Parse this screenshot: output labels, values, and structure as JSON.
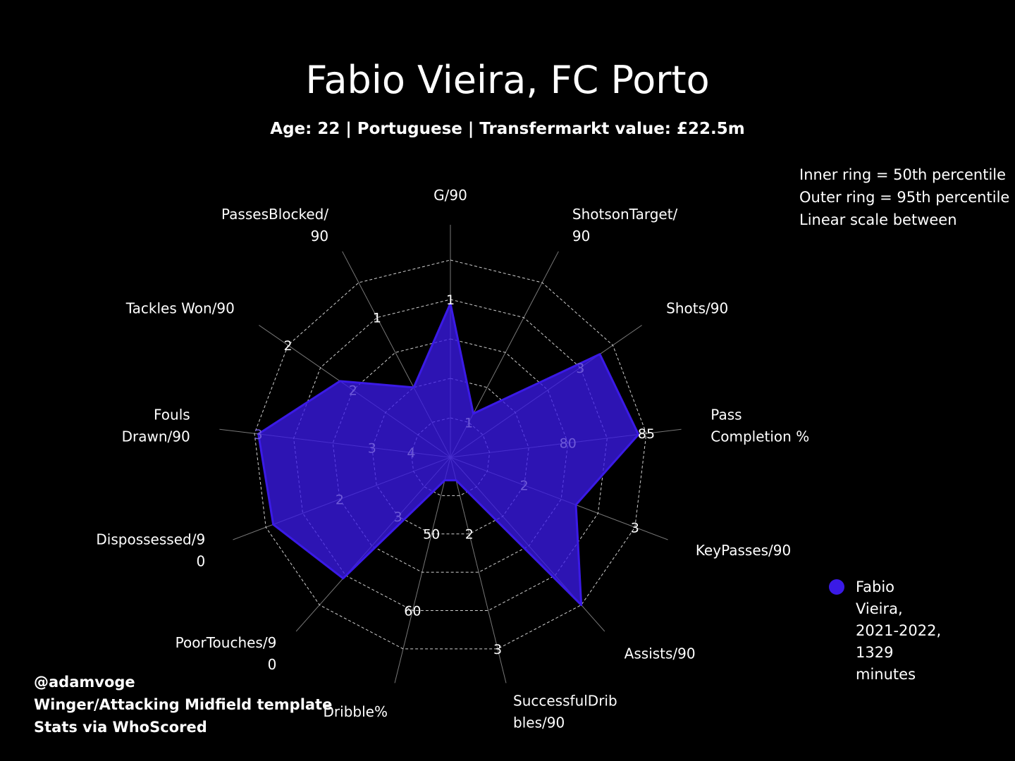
{
  "title": "Fabio Vieira, FC Porto",
  "subtitle": "Age: 22 | Portuguese | Transfermarkt value: £22.5m",
  "scale_note": [
    "Inner ring = 50th percentile",
    "Outer ring = 95th percentile",
    "Linear scale between"
  ],
  "legend": {
    "label_lines": [
      "Fabio",
      "Vieira,",
      "2021-2022,",
      "1329",
      "minutes"
    ],
    "color": "#3a1ae6"
  },
  "credits": [
    "@adamvoge",
    "Winger/Attacking Midfield template",
    "Stats via WhoScored"
  ],
  "chart_data": {
    "type": "radar",
    "series": [
      {
        "name": "Fabio Vieira, 2021-2022, 1329 minutes",
        "color": "#3a1ae6"
      }
    ],
    "axes": [
      {
        "label": [
          "G/90"
        ],
        "percentile": 78,
        "ticks": [
          {
            "value": "1",
            "level": 0.8
          }
        ]
      },
      {
        "label": [
          "ShotsonTarget/",
          "90"
        ],
        "percentile": 25,
        "ticks": [
          {
            "value": "1",
            "level": 0.2
          }
        ]
      },
      {
        "label": [
          "Shots/90"
        ],
        "percentile": 92,
        "ticks": [
          {
            "value": "3",
            "level": 0.8
          }
        ]
      },
      {
        "label": [
          "Pass",
          "Completion %"
        ],
        "percentile": 96,
        "ticks": [
          {
            "value": "80",
            "level": 0.6
          },
          {
            "value": "85",
            "level": 1.0
          }
        ]
      },
      {
        "label": [
          "KeyPasses/90"
        ],
        "percentile": 68,
        "ticks": [
          {
            "value": "2",
            "level": 0.4
          },
          {
            "value": "3",
            "level": 1.0
          }
        ]
      },
      {
        "label": [
          "Assists/90"
        ],
        "percentile": 100,
        "ticks": []
      },
      {
        "label": [
          "SuccessfulDrib",
          "bles/90"
        ],
        "percentile": 12,
        "ticks": [
          {
            "value": "2",
            "level": 0.4
          },
          {
            "value": "3",
            "level": 1.0
          }
        ]
      },
      {
        "label": [
          "Dribble%"
        ],
        "percentile": 12,
        "ticks": [
          {
            "value": "50",
            "level": 0.4
          },
          {
            "value": "60",
            "level": 0.8
          }
        ]
      },
      {
        "label": [
          "PoorTouches/9",
          "0"
        ],
        "percentile": 82,
        "ticks": [
          {
            "value": "3",
            "level": 0.4
          }
        ]
      },
      {
        "label": [
          "Dispossessed/9",
          "0"
        ],
        "percentile": 96,
        "ticks": [
          {
            "value": "2",
            "level": 0.6
          }
        ]
      },
      {
        "label": [
          "Fouls",
          "Drawn/90"
        ],
        "percentile": 98,
        "ticks": [
          {
            "value": "4",
            "level": 0.2
          },
          {
            "value": "3",
            "level": 0.4
          },
          {
            "value": "3",
            "level": 0.98
          }
        ]
      },
      {
        "label": [
          "Tackles Won/90"
        ],
        "percentile": 68,
        "ticks": [
          {
            "value": "2",
            "level": 0.6
          },
          {
            "value": "2",
            "level": 1.0
          }
        ]
      },
      {
        "label": [
          "PassesBlocked/",
          "90"
        ],
        "percentile": 40,
        "ticks": [
          {
            "value": "1",
            "level": 0.8
          }
        ]
      }
    ],
    "rings": {
      "inner": "50th percentile",
      "outer": "95th percentile"
    },
    "grid": true,
    "legend_position": "right"
  }
}
